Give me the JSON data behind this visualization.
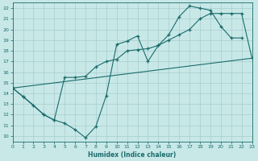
{
  "xlabel": "Humidex (Indice chaleur)",
  "xlim": [
    0,
    23
  ],
  "ylim": [
    9.5,
    22.5
  ],
  "xticks": [
    0,
    1,
    2,
    3,
    4,
    5,
    6,
    7,
    8,
    9,
    10,
    11,
    12,
    13,
    14,
    15,
    16,
    17,
    18,
    19,
    20,
    21,
    22,
    23
  ],
  "yticks": [
    10,
    11,
    12,
    13,
    14,
    15,
    16,
    17,
    18,
    19,
    20,
    21,
    22
  ],
  "bg_color": "#c8e8e8",
  "grid_color": "#a8cccc",
  "line_color": "#1a6b6b",
  "line1_x": [
    0,
    1,
    2,
    3,
    4,
    5,
    6,
    7,
    8,
    9,
    10,
    11,
    12,
    13,
    14,
    15,
    16,
    17,
    18,
    19,
    20,
    21,
    22
  ],
  "line1_y": [
    14.5,
    13.7,
    12.9,
    12.0,
    11.5,
    11.2,
    10.6,
    9.85,
    10.9,
    13.8,
    18.6,
    18.9,
    19.4,
    17.0,
    18.5,
    19.5,
    21.2,
    22.2,
    22.0,
    21.8,
    20.3,
    19.2,
    19.2
  ],
  "line2_x": [
    0,
    1,
    3,
    4,
    5,
    6,
    7,
    8,
    9,
    10,
    11,
    12,
    13,
    14,
    15,
    16,
    17,
    18,
    19,
    20,
    21,
    22,
    23
  ],
  "line2_y": [
    14.5,
    13.7,
    12.0,
    11.5,
    15.5,
    15.5,
    15.6,
    16.5,
    17.0,
    17.2,
    18.0,
    18.1,
    18.2,
    18.5,
    19.0,
    19.5,
    20.0,
    21.0,
    21.5,
    21.5,
    21.5,
    21.5,
    17.3
  ],
  "line3_x": [
    0,
    23
  ],
  "line3_y": [
    14.5,
    17.3
  ]
}
